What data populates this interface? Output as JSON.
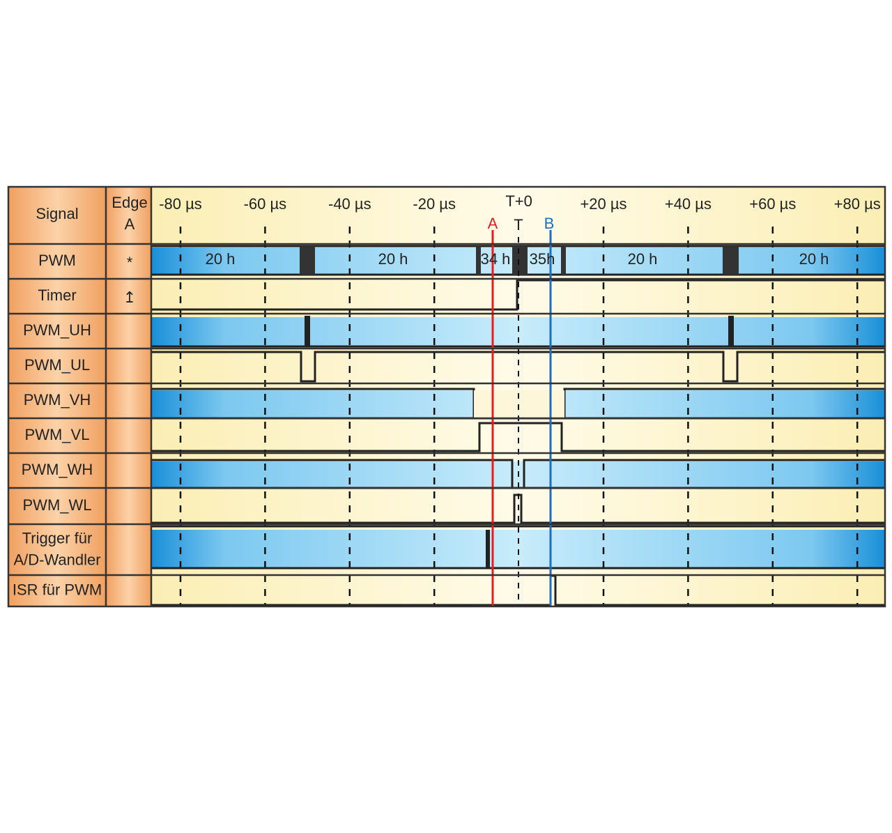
{
  "header": {
    "signal": "Signal",
    "edge": [
      "Edge",
      "A"
    ]
  },
  "time_axis": [
    "-80 µs",
    "-60 µs",
    "-40 µs",
    "-20 µs",
    "T+0",
    "+20 µs",
    "+40 µs",
    "+60 µs",
    "+80 µs"
  ],
  "cursors": [
    "A",
    "T",
    "B"
  ],
  "signals": [
    {
      "name": "PWM",
      "edge": "*",
      "bus_labels": [
        "20 h",
        "20 h",
        "34 h",
        "35h",
        "20 h",
        "20 h"
      ]
    },
    {
      "name": "Timer",
      "edge": "↥"
    },
    {
      "name": "PWM_UH"
    },
    {
      "name": "PWM_UL"
    },
    {
      "name": "PWM_VH"
    },
    {
      "name": "PWM_VL"
    },
    {
      "name": "PWM_WH"
    },
    {
      "name": "PWM_WL"
    },
    {
      "name": [
        "Trigger für",
        "A/D-Wandler"
      ]
    },
    {
      "name": "ISR für PWM"
    }
  ]
}
